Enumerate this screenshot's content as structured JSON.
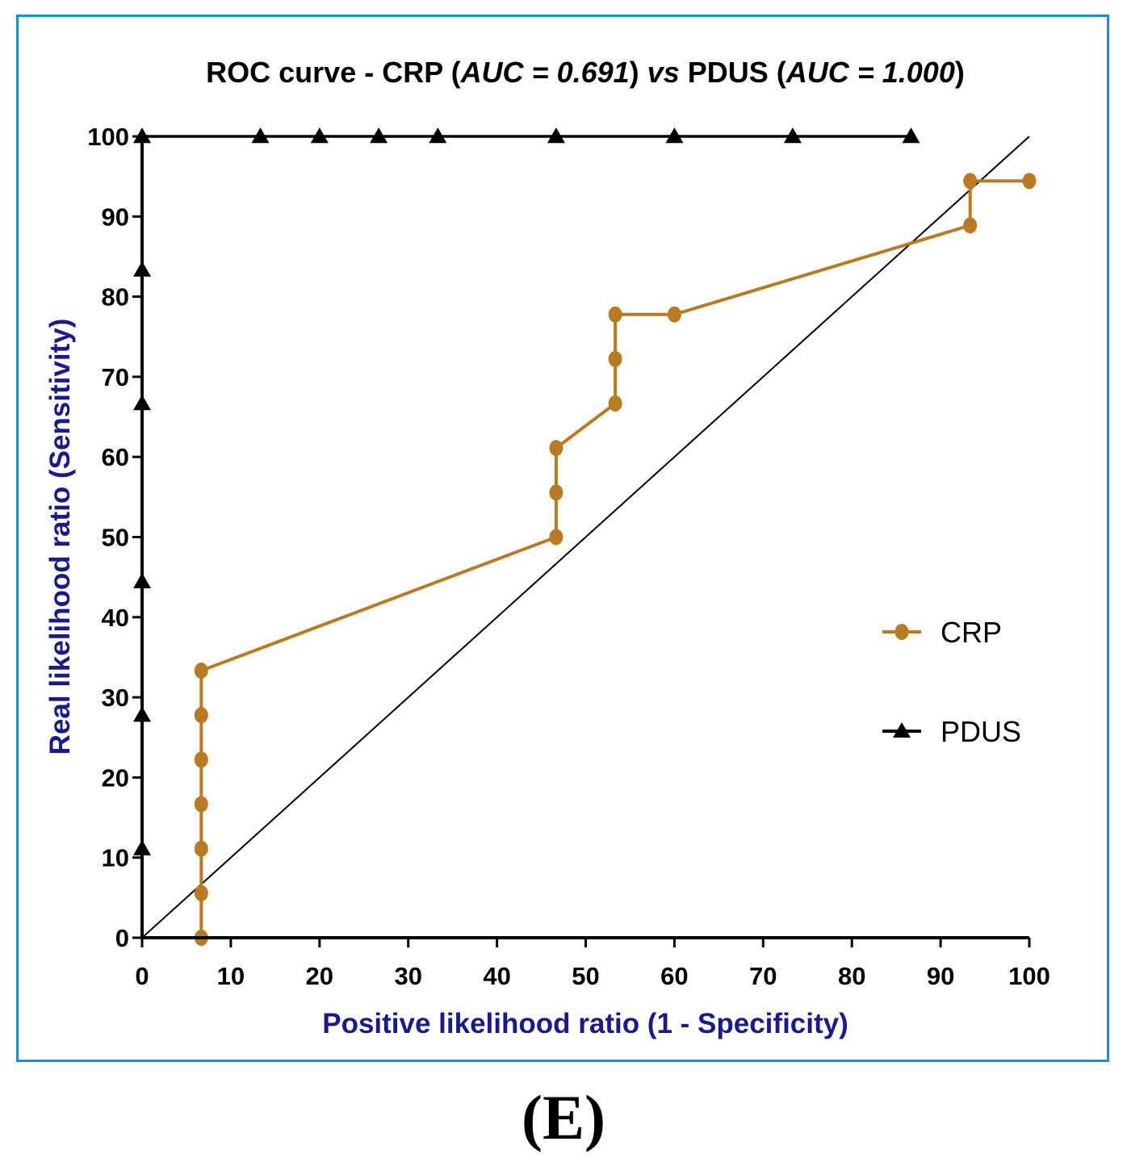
{
  "panel_label": "(E)",
  "colors": {
    "frame": "#1a8fd4",
    "crp": "#b87a23",
    "pdus": "#000000",
    "axis_title": "#1a1a8c",
    "reference_line": "#000000"
  },
  "chart_data": {
    "type": "line",
    "title_parts": [
      {
        "text": "ROC curve - CRP (",
        "italic": false
      },
      {
        "text": "AUC = 0.691",
        "italic": true
      },
      {
        "text": ") ",
        "italic": false
      },
      {
        "text": "vs",
        "italic": true
      },
      {
        "text": " PDUS (",
        "italic": false
      },
      {
        "text": "AUC = 1.000",
        "italic": true
      },
      {
        "text": ")",
        "italic": false
      }
    ],
    "xlabel": "Positive likelihood ratio (1 - Specificity)",
    "ylabel": "Real likelihood ratio (Sensitivity)",
    "xlim": [
      0,
      100
    ],
    "ylim": [
      0,
      100
    ],
    "xticks": [
      0,
      10,
      20,
      30,
      40,
      50,
      60,
      70,
      80,
      90,
      100
    ],
    "yticks": [
      0,
      10,
      20,
      30,
      40,
      50,
      60,
      70,
      80,
      90,
      100
    ],
    "grid": false,
    "legend_position": "right",
    "series": [
      {
        "name": "CRP",
        "marker": "circle",
        "x": [
          0,
          6.67,
          6.67,
          6.67,
          6.67,
          6.67,
          6.67,
          6.67,
          46.67,
          46.67,
          46.67,
          53.33,
          53.33,
          53.33,
          60,
          93.33,
          93.33,
          100
        ],
        "y": [
          0,
          0,
          5.56,
          11.11,
          16.67,
          22.22,
          27.78,
          33.33,
          50,
          55.56,
          61.11,
          66.67,
          72.22,
          77.78,
          77.78,
          88.89,
          94.44,
          94.44
        ],
        "markers_x": [
          6.67,
          6.67,
          6.67,
          6.67,
          6.67,
          6.67,
          6.67,
          46.67,
          46.67,
          46.67,
          53.33,
          53.33,
          53.33,
          60,
          93.33,
          93.33,
          100
        ],
        "markers_y": [
          0,
          5.56,
          11.11,
          16.67,
          22.22,
          27.78,
          33.33,
          50,
          55.56,
          61.11,
          66.67,
          72.22,
          77.78,
          77.78,
          88.89,
          94.44,
          94.44
        ]
      },
      {
        "name": "PDUS",
        "marker": "triangle",
        "x": [
          0,
          0,
          0,
          0,
          0,
          0,
          0,
          13.33,
          20,
          26.67,
          33.33,
          46.67,
          60,
          73.33,
          86.67
        ],
        "y": [
          0,
          11.11,
          27.78,
          44.44,
          66.67,
          83.33,
          100,
          100,
          100,
          100,
          100,
          100,
          100,
          100,
          100
        ],
        "markers_x": [
          0,
          0,
          0,
          0,
          0,
          0,
          13.33,
          20,
          26.67,
          33.33,
          46.67,
          60,
          73.33,
          86.67
        ],
        "markers_y": [
          11.11,
          27.78,
          44.44,
          66.67,
          83.33,
          100,
          100,
          100,
          100,
          100,
          100,
          100,
          100,
          100
        ]
      }
    ],
    "reference_line": {
      "x": [
        0,
        100
      ],
      "y": [
        0,
        100
      ]
    }
  }
}
